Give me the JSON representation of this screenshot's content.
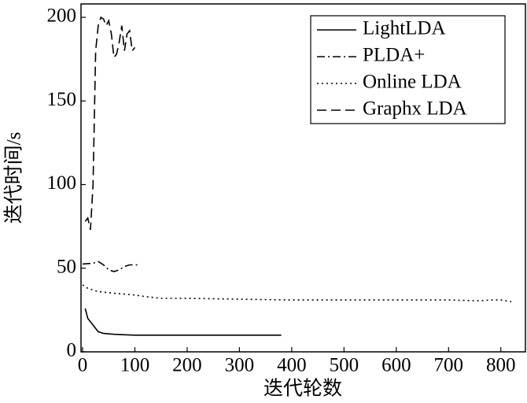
{
  "chart_data": {
    "type": "line",
    "x_label": "迭代轮数",
    "y_label": "迭代时间/s",
    "xlim": [
      -3,
      847
    ],
    "ylim": [
      0,
      208
    ],
    "xticks": [
      0,
      100,
      200,
      300,
      400,
      500,
      600,
      700,
      800
    ],
    "yticks": [
      0,
      50,
      100,
      150,
      200
    ],
    "legend": "upper right",
    "series": [
      {
        "name": "LightLDA",
        "color": "#000000",
        "dash": "solid",
        "x": [
          5,
          10,
          20,
          30,
          40,
          60,
          80,
          100,
          140,
          200,
          300,
          380
        ],
        "values": [
          26,
          20,
          16,
          12,
          11,
          10.5,
          10.2,
          10,
          10,
          10,
          10,
          10
        ]
      },
      {
        "name": "PLDA+",
        "color": "#000000",
        "dash": "dashdot",
        "x": [
          0,
          20,
          30,
          40,
          50,
          60,
          70,
          80,
          90,
          100,
          110
        ],
        "values": [
          52.5,
          53,
          54,
          52,
          49,
          48,
          49,
          51,
          52,
          52,
          52
        ]
      },
      {
        "name": "Online LDA",
        "color": "#000000",
        "dash": "dotted",
        "x": [
          0,
          10,
          30,
          60,
          100,
          120,
          150,
          200,
          300,
          400,
          500,
          600,
          700,
          760,
          780,
          800,
          820
        ],
        "values": [
          40,
          38,
          36,
          35,
          34,
          33,
          32,
          32,
          31.5,
          31,
          31,
          31,
          31,
          30.5,
          31,
          31,
          30
        ]
      },
      {
        "name": "Graphx LDA",
        "color": "#000000",
        "dash": "dashed",
        "x": [
          5,
          10,
          15,
          20,
          25,
          30,
          35,
          40,
          45,
          50,
          55,
          60,
          65,
          70,
          75,
          80,
          85,
          90,
          95,
          100
        ],
        "values": [
          78,
          80,
          73,
          100,
          180,
          195,
          200,
          199,
          195,
          198,
          190,
          176,
          178,
          185,
          195,
          180,
          190,
          192,
          180,
          182
        ]
      }
    ]
  }
}
